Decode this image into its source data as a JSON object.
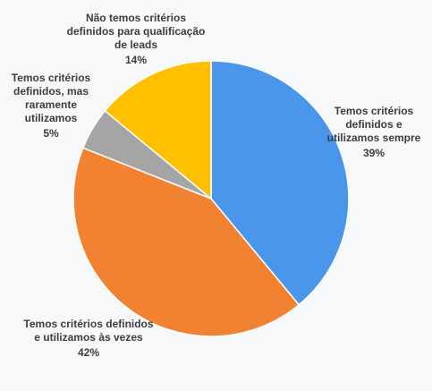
{
  "chart_data": {
    "type": "pie",
    "categories": [
      "Temos critérios definidos e utilizamos sempre",
      "Temos critérios definidos e utilizamos às vezes",
      "Temos critérios definidos, mas raramente utilizamos",
      "Não temos critérios definidos para qualificação de leads"
    ],
    "values": [
      39,
      42,
      5,
      14
    ],
    "data_labels": [
      "39%",
      "42%",
      "5%",
      "14%"
    ],
    "colors": [
      "#4a96ea",
      "#f08232",
      "#a5a5a5",
      "#ffc000"
    ],
    "start_angle": "12 o'clock",
    "direction": "clockwise",
    "legend": "none"
  }
}
